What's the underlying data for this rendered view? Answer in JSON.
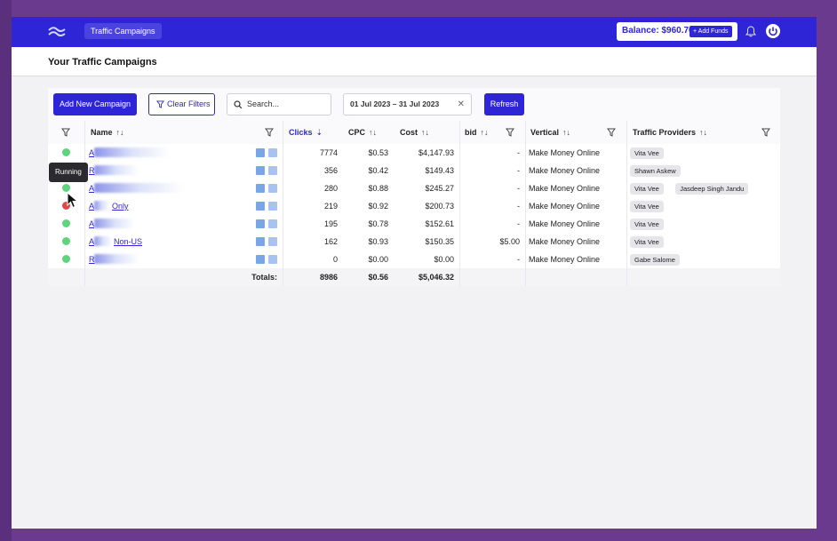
{
  "topbar": {
    "nav_label": "Traffic Campaigns",
    "balance_label": "Balance: $960.76",
    "add_funds_label": "+ Add Funds",
    "accent_color": "#2e25d6"
  },
  "page": {
    "title": "Your Traffic Campaigns"
  },
  "toolbar": {
    "add_campaign_label": "Add New Campaign",
    "clear_filters_label": "Clear Filters",
    "search_placeholder": "Search...",
    "date_range": "01 Jul 2023 – 31 Jul 2023",
    "refresh_label": "Refresh"
  },
  "table": {
    "headers": {
      "name": "Name",
      "clicks": "Clicks",
      "cpc": "CPC",
      "cost": "Cost",
      "bid": "bid",
      "vertical": "Vertical",
      "providers": "Traffic Providers"
    },
    "rows": [
      {
        "status": "running",
        "name_prefix": "A",
        "name_suffix": "",
        "clicks": "7774",
        "cpc": "$0.53",
        "cost": "$4,147.93",
        "bid": "-",
        "vertical": "Make Money Online",
        "providers": [
          "Vita Vee"
        ]
      },
      {
        "status": "running",
        "name_prefix": "R",
        "name_suffix": "",
        "clicks": "356",
        "cpc": "$0.42",
        "cost": "$149.43",
        "bid": "-",
        "vertical": "Make Money Online",
        "providers": [
          "Shawn Askew"
        ]
      },
      {
        "status": "running",
        "name_prefix": "A",
        "name_suffix": "",
        "clicks": "280",
        "cpc": "$0.88",
        "cost": "$245.27",
        "bid": "-",
        "vertical": "Make Money Online",
        "providers": [
          "Vita Vee",
          "Jasdeep Singh Jandu"
        ]
      },
      {
        "status": "stopped",
        "name_prefix": "A",
        "name_suffix": "Only",
        "clicks": "219",
        "cpc": "$0.92",
        "cost": "$200.73",
        "bid": "-",
        "vertical": "Make Money Online",
        "providers": [
          "Vita Vee"
        ]
      },
      {
        "status": "running",
        "name_prefix": "A",
        "name_suffix": "",
        "clicks": "195",
        "cpc": "$0.78",
        "cost": "$152.61",
        "bid": "-",
        "vertical": "Make Money Online",
        "providers": [
          "Vita Vee"
        ]
      },
      {
        "status": "running",
        "name_prefix": "A",
        "name_suffix": "Non-US",
        "clicks": "162",
        "cpc": "$0.93",
        "cost": "$150.35",
        "bid": "$5.00",
        "vertical": "Make Money Online",
        "providers": [
          "Vita Vee"
        ]
      },
      {
        "status": "running",
        "name_prefix": "R",
        "name_suffix": "",
        "clicks": "0",
        "cpc": "$0.00",
        "cost": "$0.00",
        "bid": "-",
        "vertical": "Make Money Online",
        "providers": [
          "Gabe Salome"
        ]
      }
    ],
    "totals": {
      "label": "Totals:",
      "clicks": "8986",
      "cpc": "$0.56",
      "cost": "$5,046.32"
    }
  },
  "tooltip": {
    "text": "Running"
  },
  "status_colors": {
    "running": "#5fd37e",
    "stopped": "#e0464a"
  }
}
